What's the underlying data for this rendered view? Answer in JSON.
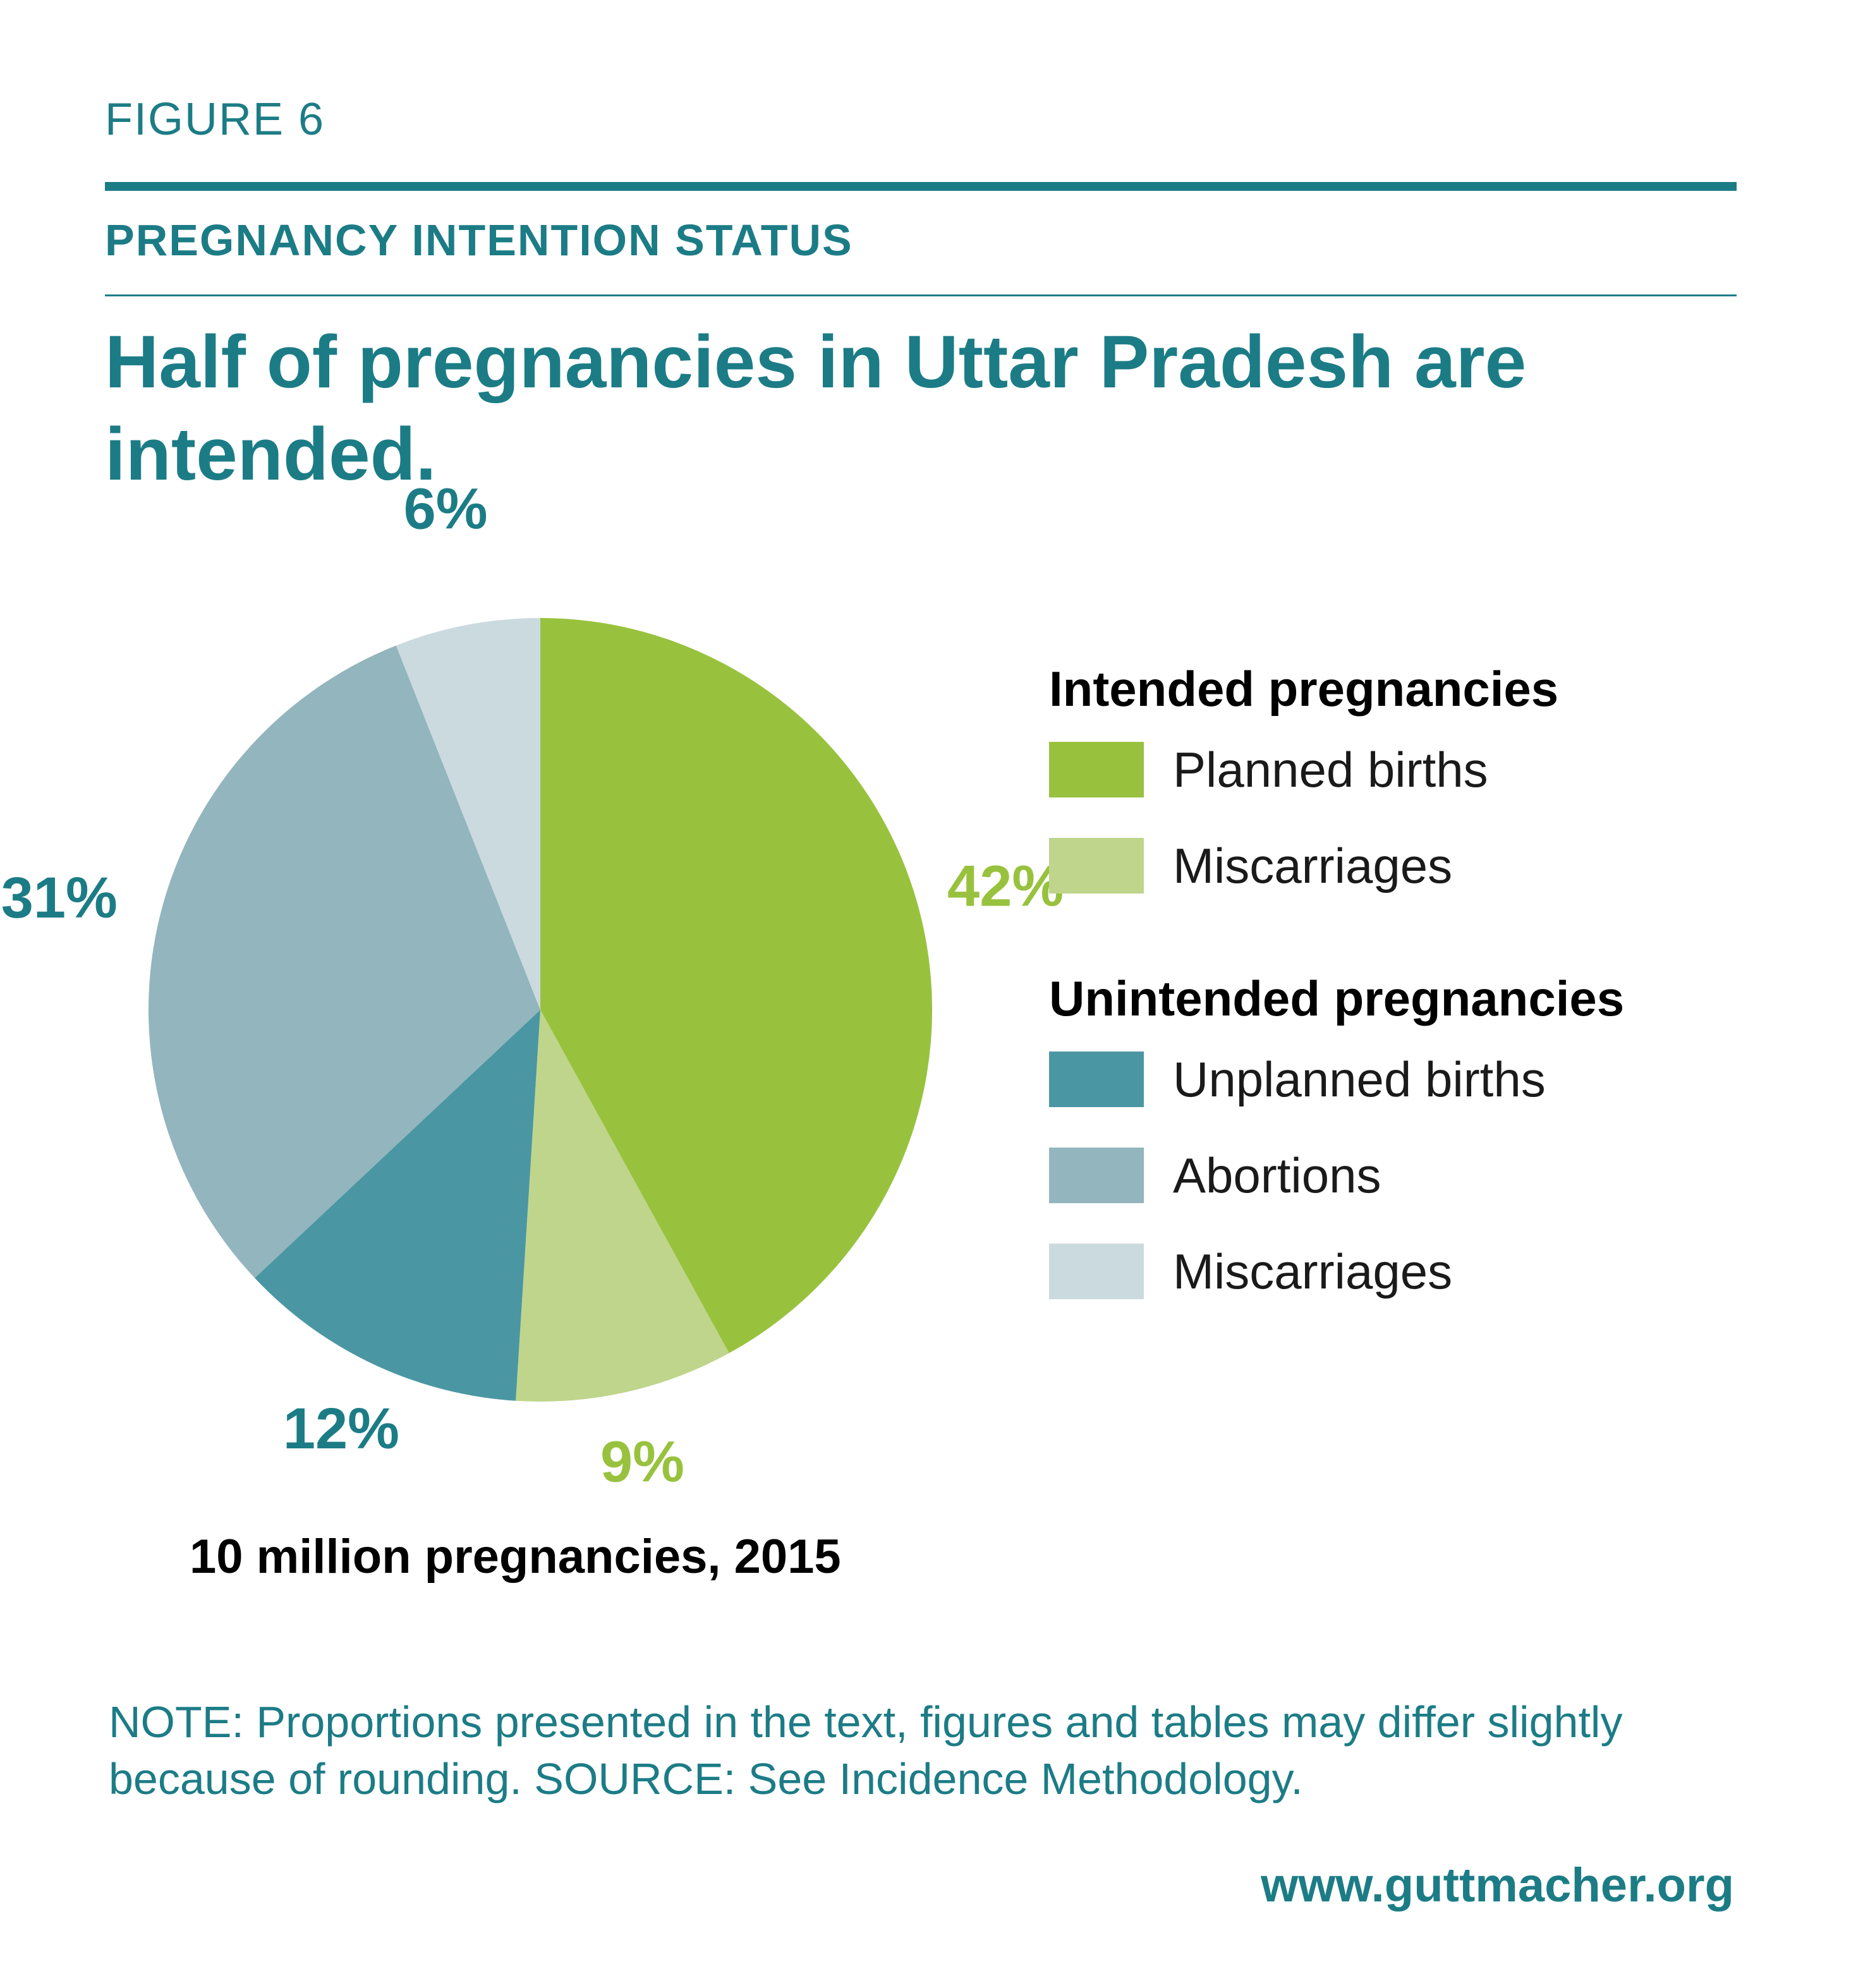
{
  "header": {
    "figure_label": "FIGURE 6",
    "section_title": "PREGNANCY INTENTION STATUS",
    "headline": "Half of pregnancies in Uttar Pradesh are intended."
  },
  "chart_data": {
    "type": "pie",
    "start": "12 o'clock, clockwise",
    "slices": [
      {
        "label": "Planned births",
        "group": "Intended pregnancies",
        "value": 42,
        "display": "42%",
        "color": "#98c23e",
        "label_color": "#98c23e"
      },
      {
        "label": "Miscarriages",
        "group": "Intended pregnancies",
        "value": 9,
        "display": "9%",
        "color": "#bfd58b",
        "label_color": "#98c23e"
      },
      {
        "label": "Unplanned births",
        "group": "Unintended pregnancies",
        "value": 12,
        "display": "12%",
        "color": "#4a97a3",
        "label_color": "#1c7c86"
      },
      {
        "label": "Abortions",
        "group": "Unintended pregnancies",
        "value": 31,
        "display": "31%",
        "color": "#93b5bd",
        "label_color": "#1c7c86"
      },
      {
        "label": "Miscarriages",
        "group": "Unintended pregnancies",
        "value": 6,
        "display": "6%",
        "color": "#cbdadf",
        "label_color": "#1c7c86"
      }
    ]
  },
  "legend": {
    "groups": [
      {
        "title": "Intended pregnancies",
        "items": [
          {
            "label": "Planned births",
            "color": "#98c23e"
          },
          {
            "label": "Miscarriages",
            "color": "#bfd58b"
          }
        ]
      },
      {
        "title": "Unintended pregnancies",
        "items": [
          {
            "label": "Unplanned births",
            "color": "#4a97a3"
          },
          {
            "label": "Abortions",
            "color": "#93b5bd"
          },
          {
            "label": "Miscarriages",
            "color": "#cbdadf"
          }
        ]
      }
    ]
  },
  "caption": "10 million pregnancies, 2015",
  "note": "NOTE: Proportions presented in the text, figures and tables may differ slightly because of rounding. SOURCE: See Incidence Methodology.",
  "url": "www.guttmacher.org"
}
